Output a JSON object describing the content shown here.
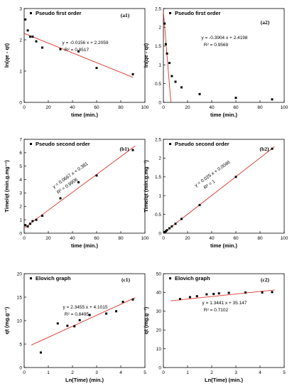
{
  "chart_data": [
    {
      "id": "a1",
      "type": "scatter",
      "panel_tag": "(a1)",
      "legend": "Pseudo first order",
      "xlabel": "time (min.)",
      "ylabel": "ln(qe - qt)",
      "xlim": [
        0,
        100
      ],
      "ylim": [
        0,
        3
      ],
      "xticks": [
        0,
        20,
        40,
        60,
        80,
        100
      ],
      "yticks": [
        0,
        1,
        2,
        3
      ],
      "x": [
        1,
        3,
        5,
        7,
        10,
        15,
        30,
        45,
        60,
        90
      ],
      "y": [
        2.65,
        2.3,
        2.1,
        2.1,
        1.95,
        1.75,
        1.7,
        1.63,
        1.1,
        0.9
      ],
      "fit": {
        "slope": -0.0156,
        "intercept": 2.2059,
        "x_range": [
          0,
          90
        ]
      },
      "equation": "y = -0.0156 x + 2.2059",
      "r2": "R² = 0.8517"
    },
    {
      "id": "a2",
      "type": "scatter",
      "panel_tag": "(a2)",
      "legend": "Pseudo first order",
      "xlabel": "time (min.)",
      "ylabel": "ln(qe - qt)",
      "xlim": [
        0,
        100
      ],
      "ylim": [
        0,
        2.5
      ],
      "xticks": [
        0,
        20,
        40,
        60,
        80,
        100
      ],
      "yticks": [
        0,
        0.5,
        1,
        1.5,
        2,
        2.5
      ],
      "x": [
        1,
        2,
        3,
        5,
        7,
        10,
        15,
        30,
        60,
        90
      ],
      "y": [
        2.1,
        1.55,
        1.3,
        1.05,
        0.7,
        0.55,
        0.4,
        0.22,
        0.12,
        0.08
      ],
      "fit": {
        "slope": -0.3904,
        "intercept": 2.4198,
        "x_range": [
          0,
          6.2
        ]
      },
      "equation": "y = -0.3904 x + 2.4198",
      "r2": "R² = 0.9569"
    },
    {
      "id": "b1",
      "type": "scatter",
      "panel_tag": "(b1)",
      "legend": "Pseudo second order",
      "xlabel": "time (min.)",
      "ylabel": "Time/qt (min.g.mg⁻¹)",
      "xlim": [
        0,
        100
      ],
      "ylim": [
        0,
        7
      ],
      "xticks": [
        0,
        20,
        40,
        60,
        80,
        100
      ],
      "yticks": [
        0,
        1,
        2,
        3,
        4,
        5,
        6,
        7
      ],
      "x": [
        1,
        3,
        5,
        7,
        10,
        15,
        30,
        45,
        60,
        90
      ],
      "y": [
        0.6,
        0.5,
        0.7,
        0.9,
        1.0,
        1.3,
        2.6,
        3.8,
        4.3,
        6.2
      ],
      "fit": {
        "slope": 0.0667,
        "intercept": 0.381,
        "x_range": [
          0,
          92
        ]
      },
      "equation": "y = 0.0667 x + 0.381",
      "r2": "R² = 0.9906"
    },
    {
      "id": "b2",
      "type": "scatter",
      "panel_tag": "(b2)",
      "legend": "Pseudo second order",
      "xlabel": "time (min.)",
      "ylabel": "Time/qt (min.g.mg⁻¹)",
      "xlim": [
        0,
        100
      ],
      "ylim": [
        0,
        2.5
      ],
      "xticks": [
        0,
        20,
        40,
        60,
        80,
        100
      ],
      "yticks": [
        0,
        0.5,
        1,
        1.5,
        2,
        2.5
      ],
      "x": [
        1,
        2,
        3,
        5,
        7,
        10,
        15,
        30,
        60,
        90
      ],
      "y": [
        0.03,
        0.05,
        0.08,
        0.13,
        0.18,
        0.25,
        0.38,
        0.75,
        1.5,
        2.25
      ],
      "fit": {
        "slope": 0.025,
        "intercept": 0.0046,
        "x_range": [
          0,
          92
        ]
      },
      "equation": "y = 0.025 x + 0.0046",
      "r2": "R² = 1"
    },
    {
      "id": "c1",
      "type": "scatter",
      "panel_tag": "(c1)",
      "legend": "Elovich graph",
      "xlabel": "Ln(Time) (min.)",
      "ylabel": "qt (mg.g⁻¹)",
      "xlim": [
        0,
        5
      ],
      "ylim": [
        0,
        20
      ],
      "xticks": [
        0,
        1,
        2,
        3,
        4,
        5
      ],
      "yticks": [
        0,
        5,
        10,
        15,
        20
      ],
      "x": [
        0.69,
        1.39,
        1.79,
        2.08,
        2.3,
        2.71,
        3.4,
        3.81,
        4.09,
        4.5
      ],
      "y": [
        3.2,
        9.4,
        8.9,
        8.8,
        10.1,
        11.2,
        11.5,
        12.0,
        14.0,
        14.5
      ],
      "fit": {
        "slope": 2.3455,
        "intercept": 4.1015,
        "x_range": [
          0.3,
          4.6
        ]
      },
      "equation": "y = 2.3455 x + 4.1015",
      "r2": "R² = 0.8495"
    },
    {
      "id": "c2",
      "type": "scatter",
      "panel_tag": "(c2)",
      "legend": "Elovich graph",
      "xlabel": "Ln(Time) (min.)",
      "ylabel": "qt (mg.g⁻¹)",
      "xlim": [
        0,
        5
      ],
      "ylim": [
        0,
        50
      ],
      "xticks": [
        0,
        1,
        2,
        3,
        4,
        5
      ],
      "yticks": [
        0,
        10,
        20,
        30,
        40,
        50
      ],
      "x": [
        0.69,
        1.1,
        1.39,
        1.79,
        2.08,
        2.3,
        2.71,
        3.4,
        4.09,
        4.5
      ],
      "y": [
        36.5,
        37.5,
        38.0,
        39.0,
        39.2,
        39.5,
        39.8,
        40.0,
        40.0,
        40.2
      ],
      "fit": {
        "slope": 1.3441,
        "intercept": 35.147,
        "x_range": [
          0.3,
          4.6
        ]
      },
      "equation": "y = 1.3441 x + 35.147",
      "r2": "R² = 0.7102"
    }
  ]
}
